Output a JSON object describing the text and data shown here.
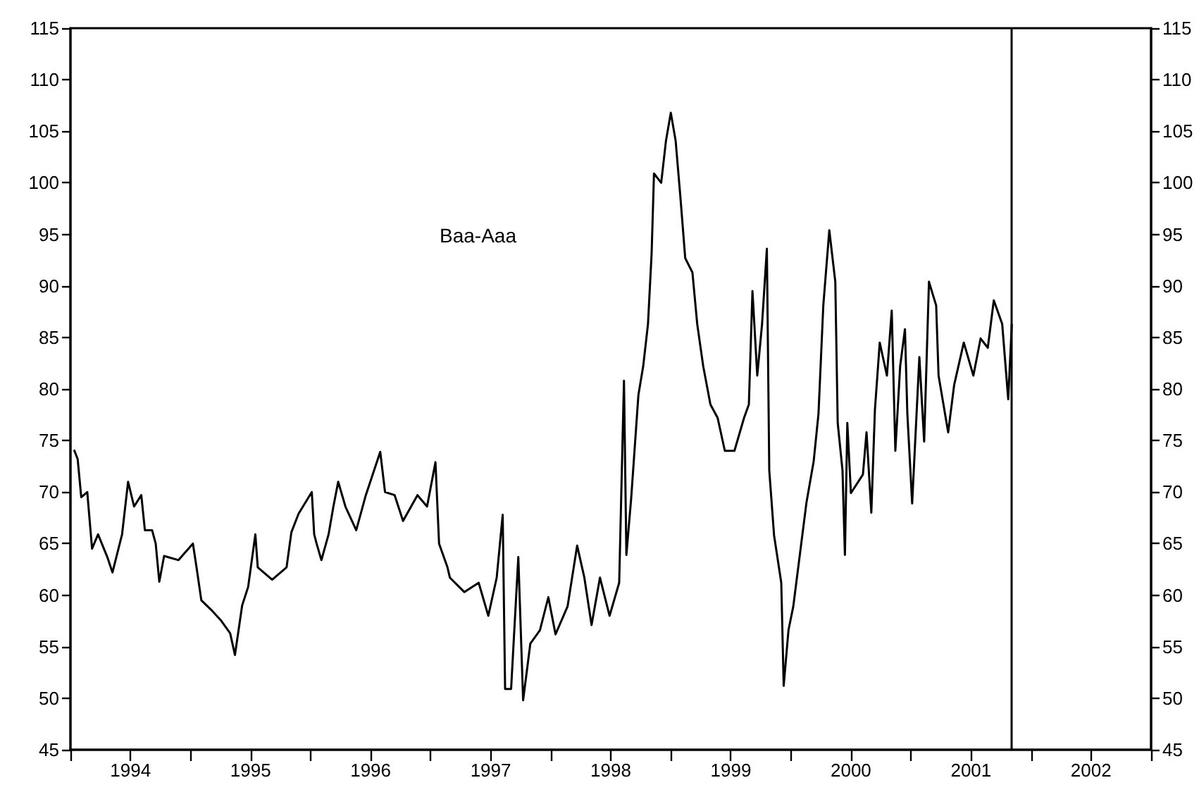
{
  "chart_data": {
    "type": "line",
    "annotations": [
      "Baa-Aaa"
    ],
    "color": "#000000",
    "x": [
      1994.03,
      1994.06,
      1994.09,
      1994.14,
      1994.18,
      1994.23,
      1994.31,
      1994.35,
      1994.43,
      1994.48,
      1994.53,
      1994.59,
      1994.62,
      1994.68,
      1994.71,
      1994.74,
      1994.78,
      1994.9,
      1995.02,
      1995.05,
      1995.09,
      1995.17,
      1995.25,
      1995.33,
      1995.37,
      1995.43,
      1995.48,
      1995.54,
      1995.56,
      1995.68,
      1995.8,
      1995.84,
      1995.9,
      1996.01,
      1996.03,
      1996.05,
      1996.09,
      1996.15,
      1996.19,
      1996.23,
      1996.29,
      1996.38,
      1996.46,
      1996.58,
      1996.62,
      1996.7,
      1996.77,
      1996.89,
      1996.97,
      1997.04,
      1997.07,
      1997.14,
      1997.16,
      1997.28,
      1997.4,
      1997.48,
      1997.55,
      1997.6,
      1997.62,
      1997.67,
      1997.73,
      1997.77,
      1997.83,
      1997.91,
      1997.98,
      1998.04,
      1998.14,
      1998.22,
      1998.28,
      1998.34,
      1998.41,
      1998.49,
      1998.57,
      1998.61,
      1998.63,
      1998.67,
      1998.73,
      1998.77,
      1998.81,
      1998.84,
      1998.86,
      1998.92,
      1998.96,
      1999.0,
      1999.04,
      1999.08,
      1999.12,
      1999.18,
      1999.22,
      1999.27,
      1999.33,
      1999.39,
      1999.45,
      1999.53,
      1999.61,
      1999.65,
      1999.68,
      1999.72,
      1999.76,
      1999.8,
      1999.82,
      1999.86,
      1999.92,
      1999.94,
      1999.98,
      2000.02,
      2000.07,
      2000.13,
      2000.19,
      2000.23,
      2000.27,
      2000.32,
      2000.37,
      2000.39,
      2000.43,
      2000.45,
      2000.47,
      2000.5,
      2000.6,
      2000.63,
      2000.67,
      2000.7,
      2000.74,
      2000.8,
      2000.84,
      2000.87,
      2000.91,
      2000.95,
      2000.97,
      2001.01,
      2001.07,
      2001.11,
      2001.15,
      2001.21,
      2001.23,
      2001.31,
      2001.36,
      2001.44,
      2001.52,
      2001.58,
      2001.64,
      2001.69,
      2001.76,
      2001.81,
      2001.84
    ],
    "values": [
      74.1,
      73.2,
      69.5,
      70,
      64.5,
      65.9,
      63.6,
      62.2,
      65.9,
      71,
      68.6,
      69.7,
      66.3,
      66.3,
      65,
      61.3,
      63.8,
      63.4,
      65,
      62.7,
      59.5,
      58.6,
      57.6,
      56.3,
      54.2,
      59,
      60.8,
      65.9,
      62.7,
      61.5,
      62.7,
      66.1,
      67.9,
      70,
      65.9,
      65,
      63.4,
      65.9,
      68.6,
      71,
      68.6,
      66.3,
      69.7,
      73.9,
      70,
      69.7,
      67.2,
      69.7,
      68.6,
      72.9,
      65,
      62.7,
      61.7,
      60.3,
      61.2,
      58,
      61.7,
      67.8,
      50.9,
      50.9,
      63.7,
      49.8,
      55.3,
      56.6,
      59.8,
      56.2,
      58.9,
      64.8,
      61.7,
      57.1,
      61.7,
      58,
      61.2,
      80.8,
      63.9,
      69.4,
      79.4,
      82.2,
      86.3,
      93.1,
      100.9,
      100,
      104.1,
      106.8,
      104.1,
      98.6,
      92.7,
      91.3,
      86.3,
      82.2,
      78.5,
      77.2,
      74,
      74,
      77.2,
      78.5,
      89.5,
      81.3,
      86.3,
      93.6,
      72.1,
      65.8,
      61.2,
      51.2,
      56.6,
      58.9,
      63.5,
      69,
      73,
      77.6,
      88.1,
      95.4,
      90.4,
      76.7,
      72.1,
      63.9,
      76.7,
      69.9,
      71.7,
      75.8,
      68,
      78,
      84.5,
      81.3,
      87.6,
      74,
      82.2,
      85.8,
      77.6,
      68.9,
      83.1,
      74.9,
      90.4,
      88.1,
      81.3,
      75.8,
      80.4,
      84.5,
      81.3,
      84.9,
      84,
      88.6,
      86.3,
      79,
      86.3
    ],
    "xlim": [
      1994,
      2003
    ],
    "xticks": [
      {
        "value": 1994,
        "label": null
      },
      {
        "value": 1994.5,
        "label": "1994"
      },
      {
        "value": 1995,
        "label": null
      },
      {
        "value": 1995.5,
        "label": "1995"
      },
      {
        "value": 1996,
        "label": null
      },
      {
        "value": 1996.5,
        "label": "1996"
      },
      {
        "value": 1997,
        "label": null
      },
      {
        "value": 1997.5,
        "label": "1997"
      },
      {
        "value": 1998,
        "label": null
      },
      {
        "value": 1998.5,
        "label": "1998"
      },
      {
        "value": 1999,
        "label": null
      },
      {
        "value": 1999.5,
        "label": "1999"
      },
      {
        "value": 2000,
        "label": null
      },
      {
        "value": 2000.5,
        "label": "2000"
      },
      {
        "value": 2001,
        "label": null
      },
      {
        "value": 2001.5,
        "label": "2001"
      },
      {
        "value": 2002,
        "label": null
      },
      {
        "value": 2002.5,
        "label": "2002"
      },
      {
        "value": 2003,
        "label": null
      }
    ],
    "ylim": [
      45,
      115
    ],
    "yticks": [
      45,
      50,
      55,
      60,
      65,
      70,
      75,
      80,
      85,
      90,
      95,
      100,
      105,
      110,
      115
    ],
    "y2lim": [
      45,
      115
    ],
    "y2ticks": [
      45,
      50,
      55,
      60,
      65,
      70,
      75,
      80,
      85,
      90,
      95,
      100,
      105,
      110,
      115
    ],
    "ref_lines": [
      {
        "axis": "x",
        "value": 2001.84,
        "color": "#000000"
      }
    ],
    "grid": false
  }
}
